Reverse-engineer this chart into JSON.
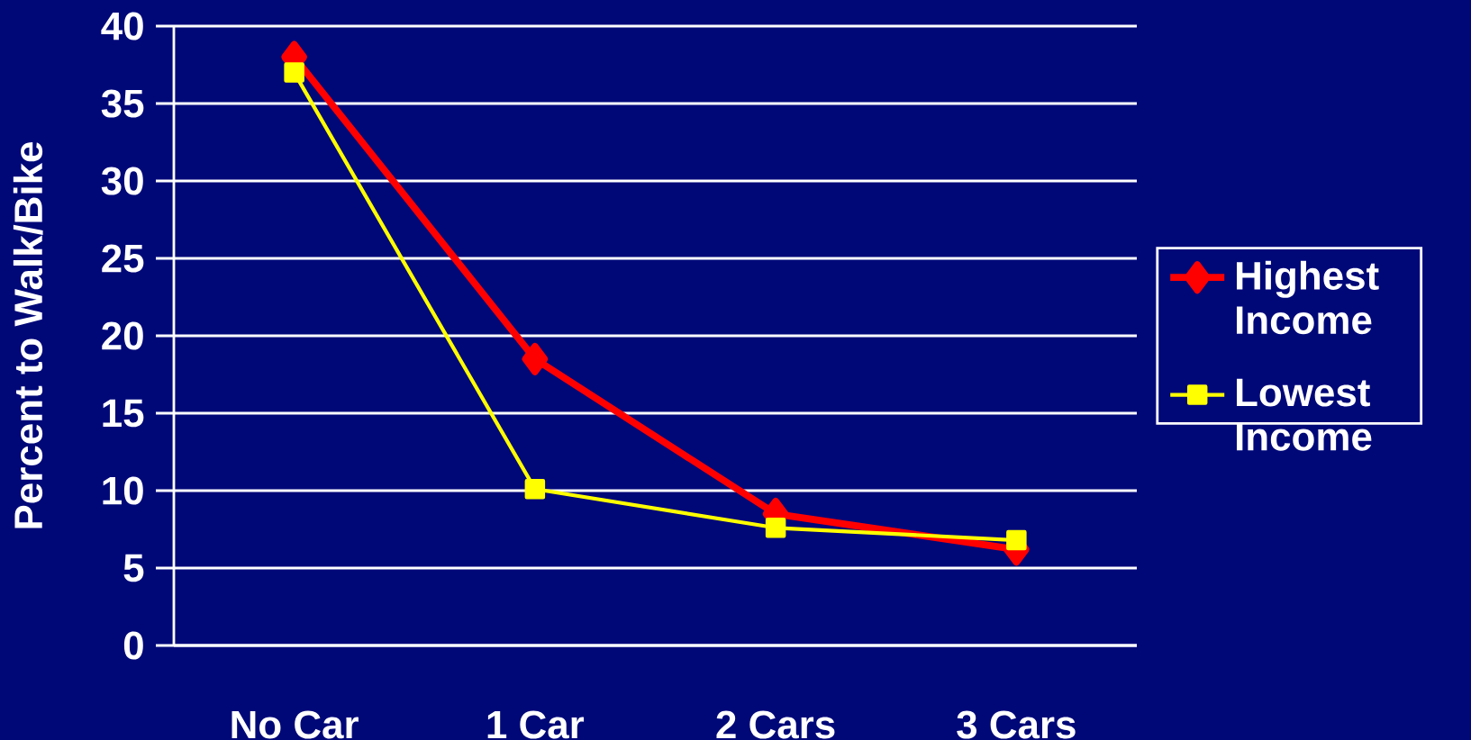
{
  "chart_data": {
    "type": "line",
    "ylabel": "Percent to Walk/Bike",
    "categories": [
      "No Car",
      "1 Car",
      "2 Cars",
      "3 Cars"
    ],
    "series": [
      {
        "name": "Highest Income",
        "color": "#ff0000",
        "marker": "diamond",
        "values": [
          38,
          18.5,
          8.5,
          6.2
        ]
      },
      {
        "name": "Lowest Income",
        "color": "#ffff00",
        "marker": "square",
        "values": [
          37,
          10.1,
          7.6,
          6.8
        ]
      }
    ],
    "ylim": [
      0,
      40
    ],
    "yticks": [
      0,
      5,
      10,
      15,
      20,
      25,
      30,
      35,
      40
    ],
    "grid": "y",
    "legend": "right"
  }
}
